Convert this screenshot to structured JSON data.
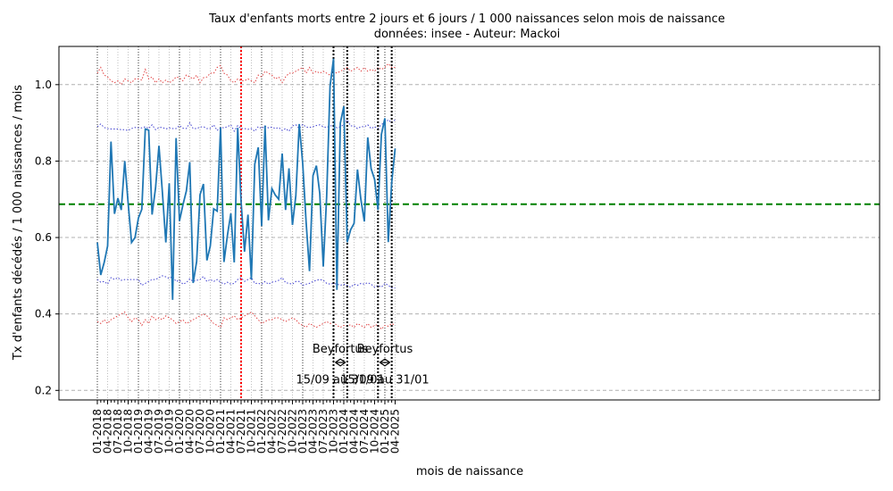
{
  "chart_data": {
    "type": "line",
    "title": "Taux d'enfants morts entre 2 jours et 6 jours / 1 000 naissances selon mois de naissance",
    "subtitle": "données: insee - Auteur: Mackoi",
    "xlabel": "mois de naissance",
    "ylabel": "Tx d'enfants décédés / 1 000 naissances / mois",
    "ylim": [
      0.175,
      1.1
    ],
    "yticks": [
      0.2,
      0.4,
      0.6,
      0.8,
      1.0
    ],
    "ytick_labels": [
      "0.2",
      "0.4",
      "0.6",
      "0.8",
      "1.0"
    ],
    "xtick_labels": [
      "01-2018",
      "04-2018",
      "07-2018",
      "10-2018",
      "01-2019",
      "04-2019",
      "07-2019",
      "10-2019",
      "01-2020",
      "04-2020",
      "07-2020",
      "10-2020",
      "01-2021",
      "04-2021",
      "07-2021",
      "10-2021",
      "01-2022",
      "04-2022",
      "07-2022",
      "10-2022",
      "01-2023",
      "04-2023",
      "07-2023",
      "10-2023",
      "01-2024",
      "04-2024",
      "07-2024",
      "10-2024",
      "01-2025",
      "04-2025"
    ],
    "grid": true,
    "mean_line": 0.687,
    "series_values": [
      0.587,
      0.502,
      0.535,
      0.578,
      0.851,
      0.662,
      0.703,
      0.672,
      0.8,
      0.69,
      0.587,
      0.6,
      0.651,
      0.674,
      0.884,
      0.881,
      0.66,
      0.73,
      0.84,
      0.72,
      0.587,
      0.742,
      0.437,
      0.86,
      0.643,
      0.685,
      0.722,
      0.797,
      0.481,
      0.537,
      0.712,
      0.74,
      0.54,
      0.578,
      0.675,
      0.669,
      0.888,
      0.536,
      0.606,
      0.663,
      0.535,
      0.887,
      0.693,
      0.563,
      0.66,
      0.49,
      0.792,
      0.836,
      0.63,
      0.893,
      0.645,
      0.728,
      0.711,
      0.7,
      0.82,
      0.672,
      0.781,
      0.633,
      0.71,
      0.897,
      0.793,
      0.64,
      0.512,
      0.762,
      0.788,
      0.715,
      0.524,
      0.707,
      0.996,
      1.068,
      0.463,
      0.899,
      0.943,
      0.588,
      0.62,
      0.637,
      0.778,
      0.7,
      0.642,
      0.862,
      0.78,
      0.752,
      0.672,
      0.87,
      0.912,
      0.588,
      0.743,
      0.833
    ],
    "upper_blue": [
      0.89,
      0.897,
      0.888,
      0.885,
      0.884,
      0.884,
      0.884,
      0.882,
      0.882,
      0.88,
      0.885,
      0.888,
      0.887,
      0.887,
      0.89,
      0.885,
      0.895,
      0.882,
      0.888,
      0.888,
      0.884,
      0.887,
      0.885,
      0.885,
      0.893,
      0.886,
      0.885,
      0.9,
      0.885,
      0.885,
      0.889,
      0.89,
      0.885,
      0.885,
      0.895,
      0.88,
      0.888,
      0.887,
      0.89,
      0.895,
      0.878,
      0.893,
      0.885,
      0.885,
      0.883,
      0.885,
      0.878,
      0.89,
      0.885,
      0.892,
      0.887,
      0.889,
      0.885,
      0.888,
      0.88,
      0.885,
      0.878,
      0.892,
      0.895,
      0.885,
      0.896,
      0.889,
      0.888,
      0.89,
      0.893,
      0.895,
      0.89,
      0.888,
      0.892,
      0.893,
      0.887,
      0.89,
      0.895,
      0.908,
      0.892,
      0.892,
      0.885,
      0.89,
      0.89,
      0.895,
      0.885,
      0.89,
      0.885,
      0.896,
      0.9,
      0.908,
      0.9,
      0.908
    ],
    "lower_blue": [
      0.49,
      0.483,
      0.485,
      0.478,
      0.495,
      0.49,
      0.495,
      0.488,
      0.49,
      0.49,
      0.49,
      0.49,
      0.49,
      0.475,
      0.48,
      0.485,
      0.49,
      0.49,
      0.495,
      0.5,
      0.497,
      0.493,
      0.498,
      0.485,
      0.488,
      0.478,
      0.482,
      0.492,
      0.485,
      0.488,
      0.49,
      0.498,
      0.485,
      0.49,
      0.485,
      0.49,
      0.483,
      0.478,
      0.483,
      0.478,
      0.48,
      0.49,
      0.495,
      0.485,
      0.49,
      0.495,
      0.48,
      0.48,
      0.478,
      0.485,
      0.478,
      0.483,
      0.485,
      0.488,
      0.495,
      0.482,
      0.48,
      0.478,
      0.485,
      0.485,
      0.475,
      0.478,
      0.48,
      0.485,
      0.488,
      0.49,
      0.488,
      0.48,
      0.478,
      0.48,
      0.478,
      0.475,
      0.478,
      0.475,
      0.47,
      0.478,
      0.475,
      0.48,
      0.478,
      0.482,
      0.478,
      0.47,
      0.475,
      0.47,
      0.48,
      0.475,
      0.468,
      0.468
    ],
    "upper_red": [
      1.03,
      1.045,
      1.025,
      1.02,
      1.01,
      1.005,
      1.01,
      1.0,
      1.015,
      1.01,
      1.005,
      1.015,
      1.015,
      1.012,
      1.04,
      1.015,
      1.02,
      1.005,
      1.015,
      1.005,
      1.012,
      1.005,
      1.01,
      1.02,
      1.018,
      1.01,
      1.025,
      1.02,
      1.015,
      1.025,
      1.005,
      1.018,
      1.02,
      1.03,
      1.03,
      1.045,
      1.05,
      1.03,
      1.025,
      1.01,
      1.005,
      1.015,
      1.01,
      1.01,
      1.015,
      1.01,
      1.005,
      1.025,
      1.02,
      1.035,
      1.03,
      1.025,
      1.015,
      1.02,
      1.005,
      1.02,
      1.03,
      1.03,
      1.035,
      1.04,
      1.045,
      1.03,
      1.045,
      1.03,
      1.035,
      1.03,
      1.035,
      1.03,
      1.025,
      1.035,
      1.03,
      1.035,
      1.04,
      1.045,
      1.035,
      1.04,
      1.045,
      1.035,
      1.045,
      1.035,
      1.04,
      1.035,
      1.045,
      1.04,
      1.045,
      1.055,
      1.045,
      1.045
    ],
    "lower_red": [
      0.38,
      0.375,
      0.385,
      0.375,
      0.385,
      0.39,
      0.395,
      0.4,
      0.405,
      0.39,
      0.38,
      0.39,
      0.385,
      0.37,
      0.385,
      0.375,
      0.395,
      0.385,
      0.39,
      0.385,
      0.395,
      0.39,
      0.385,
      0.375,
      0.38,
      0.385,
      0.375,
      0.38,
      0.385,
      0.39,
      0.395,
      0.4,
      0.395,
      0.385,
      0.375,
      0.37,
      0.365,
      0.39,
      0.385,
      0.39,
      0.395,
      0.385,
      0.39,
      0.395,
      0.4,
      0.405,
      0.395,
      0.385,
      0.375,
      0.38,
      0.385,
      0.385,
      0.39,
      0.39,
      0.385,
      0.38,
      0.385,
      0.39,
      0.385,
      0.375,
      0.37,
      0.365,
      0.375,
      0.37,
      0.365,
      0.37,
      0.375,
      0.38,
      0.375,
      0.378,
      0.37,
      0.365,
      0.37,
      0.368,
      0.372,
      0.365,
      0.375,
      0.37,
      0.365,
      0.375,
      0.365,
      0.37,
      0.372,
      0.36,
      0.37,
      0.368,
      0.375,
      0.37
    ],
    "highlight_red_index": 42,
    "vertical_markers": [
      69,
      73,
      82,
      86
    ],
    "annotations": [
      {
        "label": "Beyfortus",
        "range": "15/09 au 31/01",
        "start": 69,
        "end": 73
      },
      {
        "label": "Beyfortus",
        "range": "15/09 au 31/01",
        "start": 82,
        "end": 86
      }
    ],
    "colors": {
      "main": "#1f77b4",
      "band_blue": "#4040d0",
      "band_red": "#e04040",
      "mean": "#008000",
      "highlight": "#ff0000",
      "markers": "#000000",
      "grid": "#b0b0b0"
    }
  }
}
